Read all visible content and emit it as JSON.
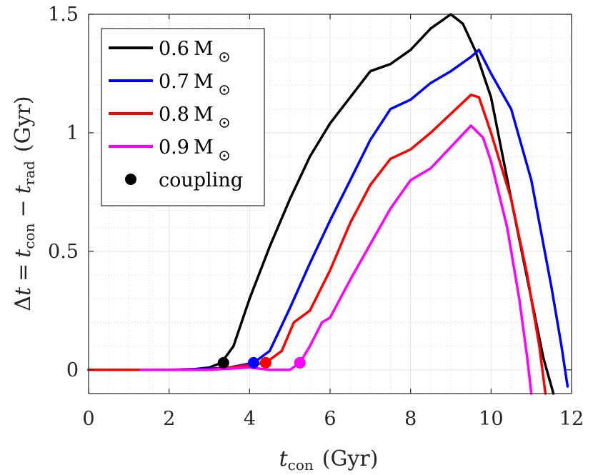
{
  "chart_data": {
    "type": "line",
    "xlabel": "t_con (Gyr)",
    "xlabel_main": "t",
    "xlabel_sub": "con",
    "xlabel_unit": "(Gyr)",
    "ylabel": "Δt = t_con − t_rad (Gyr)",
    "ylabel_parts": {
      "delta": "Δ",
      "t1": "t",
      "eq": "=",
      "t2": "t",
      "sub2": "con",
      "minus": "−",
      "t3": "t",
      "sub3": "rad",
      "unit": "(Gyr)"
    },
    "xlim": [
      0,
      12
    ],
    "ylim": [
      -0.1,
      1.5
    ],
    "xticks": [
      0,
      2,
      4,
      6,
      8,
      10,
      12
    ],
    "yticks": [
      0,
      0.5,
      1,
      1.5
    ],
    "ytick_labels": [
      "0",
      "0.5",
      "1",
      "1.5"
    ],
    "grid": true,
    "minor_grid": true,
    "legend_position": "top-left",
    "series": [
      {
        "name": "0.6 M⊙",
        "mass": "0.6",
        "unit_symbol": "M",
        "color": "#000000",
        "points": [
          [
            0,
            0
          ],
          [
            1,
            0
          ],
          [
            2,
            0
          ],
          [
            2.5,
            0
          ],
          [
            3.0,
            0.01
          ],
          [
            3.3,
            0.03
          ],
          [
            3.6,
            0.1
          ],
          [
            4.0,
            0.3
          ],
          [
            4.5,
            0.52
          ],
          [
            5.0,
            0.72
          ],
          [
            5.5,
            0.9
          ],
          [
            6.0,
            1.04
          ],
          [
            6.5,
            1.15
          ],
          [
            7.0,
            1.26
          ],
          [
            7.5,
            1.29
          ],
          [
            8.0,
            1.35
          ],
          [
            8.5,
            1.44
          ],
          [
            9.0,
            1.5
          ],
          [
            9.3,
            1.46
          ],
          [
            9.6,
            1.35
          ],
          [
            10.0,
            1.15
          ],
          [
            10.5,
            0.72
          ],
          [
            11.0,
            0.3
          ],
          [
            11.3,
            0.05
          ],
          [
            11.55,
            -0.1
          ]
        ],
        "coupling": [
          3.35,
          0.03
        ]
      },
      {
        "name": "0.7 M⊙",
        "mass": "0.7",
        "unit_symbol": "M",
        "color": "#0000ff",
        "points": [
          [
            0,
            0
          ],
          [
            2,
            0
          ],
          [
            3.0,
            0.005
          ],
          [
            3.5,
            0.01
          ],
          [
            4.1,
            0.03
          ],
          [
            4.5,
            0.08
          ],
          [
            5.0,
            0.26
          ],
          [
            5.5,
            0.45
          ],
          [
            6.0,
            0.63
          ],
          [
            6.5,
            0.8
          ],
          [
            7.0,
            0.97
          ],
          [
            7.5,
            1.1
          ],
          [
            8.0,
            1.14
          ],
          [
            8.5,
            1.21
          ],
          [
            9.0,
            1.26
          ],
          [
            9.5,
            1.32
          ],
          [
            9.7,
            1.35
          ],
          [
            10.0,
            1.25
          ],
          [
            10.5,
            1.1
          ],
          [
            11.0,
            0.8
          ],
          [
            11.5,
            0.35
          ],
          [
            11.75,
            0.1
          ],
          [
            11.9,
            -0.07
          ]
        ],
        "coupling": [
          4.1,
          0.03
        ]
      },
      {
        "name": "0.8 M⊙",
        "mass": "0.8",
        "unit_symbol": "M",
        "color": "#ff0000",
        "points": [
          [
            0,
            0
          ],
          [
            2,
            0
          ],
          [
            3.0,
            0
          ],
          [
            4.0,
            0.02
          ],
          [
            4.4,
            0.03
          ],
          [
            4.8,
            0.08
          ],
          [
            5.1,
            0.2
          ],
          [
            5.5,
            0.25
          ],
          [
            6.0,
            0.42
          ],
          [
            6.5,
            0.62
          ],
          [
            7.0,
            0.78
          ],
          [
            7.5,
            0.89
          ],
          [
            8.0,
            0.93
          ],
          [
            8.5,
            1.0
          ],
          [
            9.0,
            1.08
          ],
          [
            9.5,
            1.16
          ],
          [
            9.7,
            1.15
          ],
          [
            10.0,
            1.0
          ],
          [
            10.5,
            0.72
          ],
          [
            10.9,
            0.4
          ],
          [
            11.2,
            0.1
          ],
          [
            11.35,
            -0.1
          ]
        ],
        "coupling": [
          4.4,
          0.03
        ]
      },
      {
        "name": "0.9 M⊙",
        "mass": "0.9",
        "unit_symbol": "M",
        "color": "#ff00ff",
        "points": [
          [
            1.3,
            0
          ],
          [
            2,
            0
          ],
          [
            3,
            0
          ],
          [
            4,
            0.01
          ],
          [
            4.5,
            0
          ],
          [
            5.0,
            0
          ],
          [
            5.25,
            0.03
          ],
          [
            5.5,
            0.1
          ],
          [
            5.8,
            0.2
          ],
          [
            6.0,
            0.22
          ],
          [
            6.5,
            0.38
          ],
          [
            7.0,
            0.53
          ],
          [
            7.5,
            0.68
          ],
          [
            8.0,
            0.8
          ],
          [
            8.5,
            0.85
          ],
          [
            9.0,
            0.94
          ],
          [
            9.5,
            1.03
          ],
          [
            9.8,
            0.98
          ],
          [
            10.0,
            0.88
          ],
          [
            10.4,
            0.6
          ],
          [
            10.7,
            0.3
          ],
          [
            10.9,
            0.05
          ],
          [
            11.0,
            -0.1
          ]
        ],
        "coupling": [
          5.25,
          0.03
        ]
      }
    ],
    "coupling_label": "coupling"
  }
}
